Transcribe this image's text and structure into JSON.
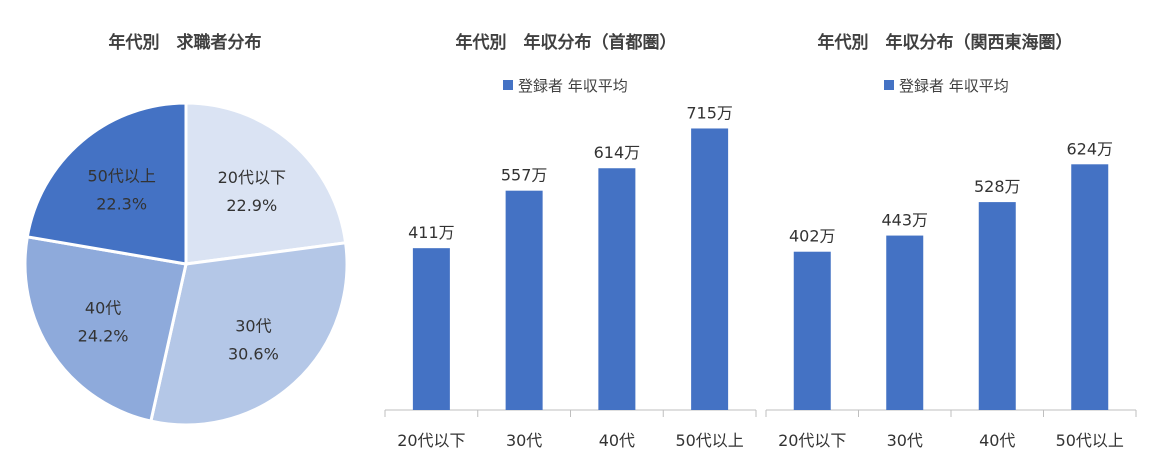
{
  "chart_data": [
    {
      "type": "pie",
      "title": "年代別　求職者分布",
      "categories": [
        "20代以下",
        "30代",
        "40代",
        "50代以上"
      ],
      "values": [
        22.9,
        30.6,
        24.2,
        22.3
      ],
      "value_labels": [
        "22.9%",
        "30.6%",
        "24.2%",
        "22.3%"
      ],
      "colors": [
        "#dae3f3",
        "#b4c7e7",
        "#8eaadb",
        "#4472c4"
      ]
    },
    {
      "type": "bar",
      "title": "年代別　年収分布（首都圏）",
      "categories": [
        "20代以下",
        "30代",
        "40代",
        "50代以上"
      ],
      "series": [
        {
          "name": "登録者 年収平均",
          "values": [
            411,
            557,
            614,
            715
          ],
          "labels": [
            "411万",
            "557万",
            "614万",
            "715万"
          ]
        }
      ],
      "bar_color": "#4472c4",
      "ylim": [
        0,
        800
      ],
      "legend": "top",
      "grid": false
    },
    {
      "type": "bar",
      "title": "年代別　年収分布（関西東海圏）",
      "categories": [
        "20代以下",
        "30代",
        "40代",
        "50代以上"
      ],
      "series": [
        {
          "name": "登録者 年収平均",
          "values": [
            402,
            443,
            528,
            624
          ],
          "labels": [
            "402万",
            "443万",
            "528万",
            "624万"
          ]
        }
      ],
      "bar_color": "#4472c4",
      "ylim": [
        0,
        800
      ],
      "legend": "top",
      "grid": false
    }
  ]
}
